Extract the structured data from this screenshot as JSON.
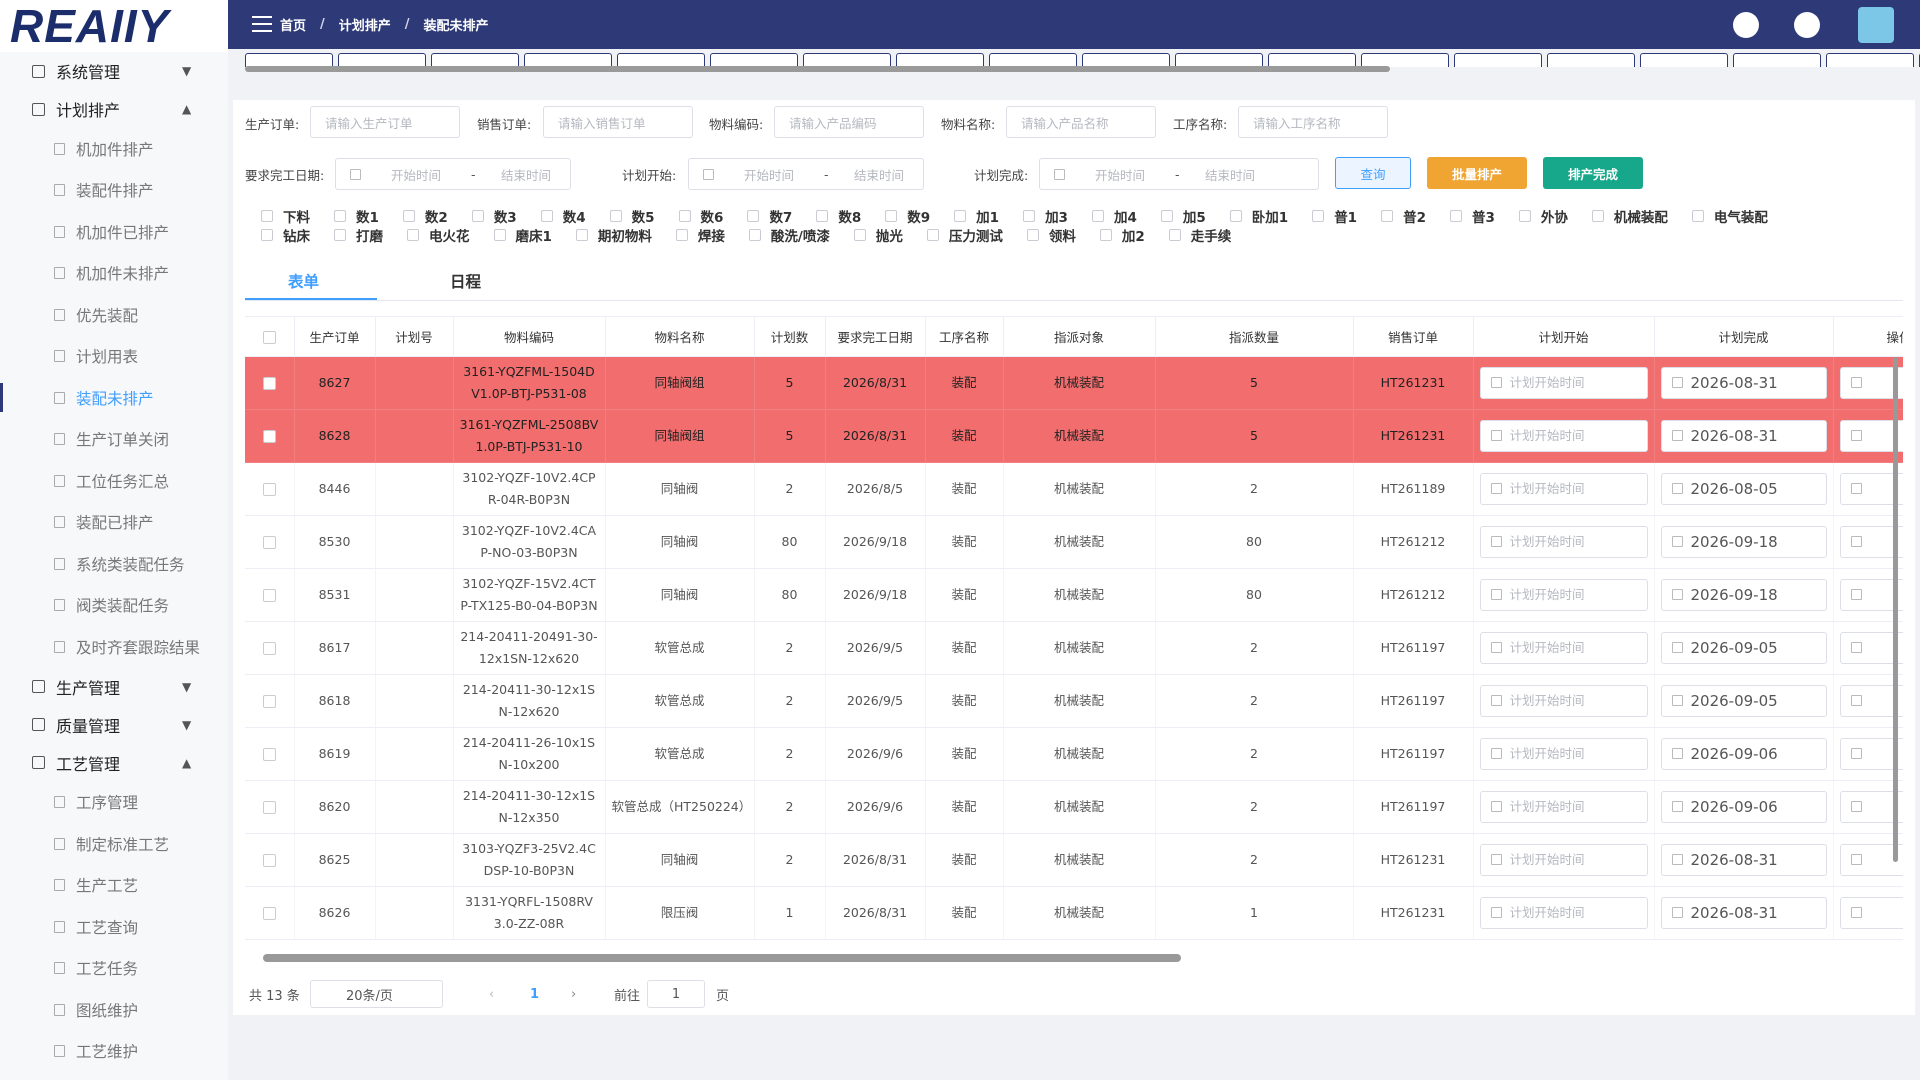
{
  "logo": "REAIIY",
  "breadcrumb": [
    "首页",
    "计划排产",
    "装配未排产"
  ],
  "breadcrumb_separator": "/",
  "sidebar": [
    {
      "label": "系统管理",
      "expanded": false
    },
    {
      "label": "计划排产",
      "expanded": true,
      "active_child": 6,
      "children": [
        "机加件排产",
        "装配件排产",
        "机加件已排产",
        "机加件未排产",
        "优先装配",
        "计划用表",
        "装配未排产",
        "生产订单关闭",
        "工位任务汇总",
        "装配已排产",
        "系统类装配任务",
        "阀类装配任务",
        "及时齐套跟踪结果"
      ]
    },
    {
      "label": "生产管理",
      "expanded": false
    },
    {
      "label": "质量管理",
      "expanded": false
    },
    {
      "label": "工艺管理",
      "expanded": true,
      "children": [
        "工序管理",
        "制定标准工艺",
        "生产工艺",
        "工艺查询",
        "工艺任务",
        "图纸维护",
        "工艺维护"
      ]
    }
  ],
  "filters": {
    "fields": [
      {
        "label": "生产订单:",
        "placeholder": "请输入生产订单"
      },
      {
        "label": "销售订单:",
        "placeholder": "请输入销售订单"
      },
      {
        "label": "物料编码:",
        "placeholder": "请输入产品编码"
      },
      {
        "label": "物料名称:",
        "placeholder": "请输入产品名称"
      },
      {
        "label": "工序名称:",
        "placeholder": "请输入工序名称"
      }
    ],
    "date_ranges": [
      {
        "label": "要求完工日期:",
        "start": "开始时间",
        "separator": "-",
        "end": "结束时间"
      },
      {
        "label": "计划开始:",
        "start": "开始时间",
        "separator": "-",
        "end": "结束时间"
      },
      {
        "label": "计划完成:",
        "start": "开始时间",
        "separator": "-",
        "end": "结束时间"
      }
    ],
    "buttons": [
      {
        "label": "查询",
        "color": "#409eff",
        "style": "outline"
      },
      {
        "label": "批量排产",
        "color": "#f0a532",
        "style": "solid"
      },
      {
        "label": "排产完成",
        "color": "#17a88b",
        "style": "solid"
      }
    ]
  },
  "checkboxes": [
    "下料",
    "数1",
    "数2",
    "数3",
    "数4",
    "数5",
    "数6",
    "数7",
    "数8",
    "数9",
    "加1",
    "加3",
    "加4",
    "加5",
    "卧加1",
    "普1",
    "普2",
    "普3",
    "外协",
    "机械装配",
    "电气装配",
    "钻床",
    "打磨",
    "电火花",
    "磨床1",
    "期初物料",
    "焊接",
    "酸洗/喷漆",
    "抛光",
    "压力测试",
    "领料",
    "加2",
    "走手续"
  ],
  "view_tabs": {
    "items": [
      "表单",
      "日程"
    ],
    "active": 0
  },
  "table": {
    "columns": [
      "生产订单",
      "计划号",
      "物料编码",
      "物料名称",
      "计划数",
      "要求完工日期",
      "工序名称",
      "指派对象",
      "指派数量",
      "销售订单",
      "计划开始",
      "计划完成",
      "操作"
    ],
    "start_placeholder": "计划开始时间",
    "highlight_color": "#f26d6d",
    "rows": [
      {
        "highlighted": true,
        "cells": [
          "8627",
          null,
          "3161-YQZFML-1504DV1.0P-BTJ-P531-08",
          "同轴阀组",
          "5",
          "2026/8/31",
          "装配",
          "机械装配",
          "5",
          "HT261231",
          null,
          "2026-08-31"
        ]
      },
      {
        "highlighted": true,
        "cells": [
          "8628",
          null,
          "3161-YQZFML-2508BV1.0P-BTJ-P531-10",
          "同轴阀组",
          "5",
          "2026/8/31",
          "装配",
          "机械装配",
          "5",
          "HT261231",
          null,
          "2026-08-31"
        ]
      },
      {
        "highlighted": false,
        "cells": [
          "8446",
          null,
          "3102-YQZF-10V2.4CPR-04R-B0P3N",
          "同轴阀",
          "2",
          "2026/8/5",
          "装配",
          "机械装配",
          "2",
          "HT261189",
          null,
          "2026-08-05"
        ]
      },
      {
        "highlighted": false,
        "cells": [
          "8530",
          null,
          "3102-YQZF-10V2.4CAP-NO-03-B0P3N",
          "同轴阀",
          "80",
          "2026/9/18",
          "装配",
          "机械装配",
          "80",
          "HT261212",
          null,
          "2026-09-18"
        ]
      },
      {
        "highlighted": false,
        "cells": [
          "8531",
          null,
          "3102-YQZF-15V2.4CTP-TX125-B0-04-B0P3N",
          "同轴阀",
          "80",
          "2026/9/18",
          "装配",
          "机械装配",
          "80",
          "HT261212",
          null,
          "2026-09-18"
        ]
      },
      {
        "highlighted": false,
        "cells": [
          "8617",
          null,
          "214-20411-20491-30-12x1SN-12x620",
          "软管总成",
          "2",
          "2026/9/5",
          "装配",
          "机械装配",
          "2",
          "HT261197",
          null,
          "2026-09-05"
        ]
      },
      {
        "highlighted": false,
        "cells": [
          "8618",
          null,
          "214-20411-30-12x1SN-12x620",
          "软管总成",
          "2",
          "2026/9/5",
          "装配",
          "机械装配",
          "2",
          "HT261197",
          null,
          "2026-09-05"
        ]
      },
      {
        "highlighted": false,
        "cells": [
          "8619",
          null,
          "214-20411-26-10x1SN-10x200",
          "软管总成",
          "2",
          "2026/9/6",
          "装配",
          "机械装配",
          "2",
          "HT261197",
          null,
          "2026-09-06"
        ]
      },
      {
        "highlighted": false,
        "cells": [
          "8620",
          null,
          "214-20411-30-12x1SN-12x350",
          "软管总成（HT250224）",
          "2",
          "2026/9/6",
          "装配",
          "机械装配",
          "2",
          "HT261197",
          null,
          "2026-09-06"
        ]
      },
      {
        "highlighted": false,
        "cells": [
          "8625",
          null,
          "3103-YQZF3-25V2.4CDSP-10-B0P3N",
          "同轴阀",
          "2",
          "2026/8/31",
          "装配",
          "机械装配",
          "2",
          "HT261231",
          null,
          "2026-08-31"
        ]
      },
      {
        "highlighted": false,
        "cells": [
          "8626",
          null,
          "3131-YQRFL-1508RV3.0-ZZ-08R",
          "限压阀",
          "1",
          "2026/8/31",
          "装配",
          "机械装配",
          "1",
          "HT261231",
          null,
          "2026-08-31"
        ]
      }
    ]
  },
  "pagination": {
    "total": "共 13 条",
    "page_size": "20条/页",
    "current": 1,
    "goto": "前往",
    "goto_value": 1,
    "page_unit": "页"
  }
}
